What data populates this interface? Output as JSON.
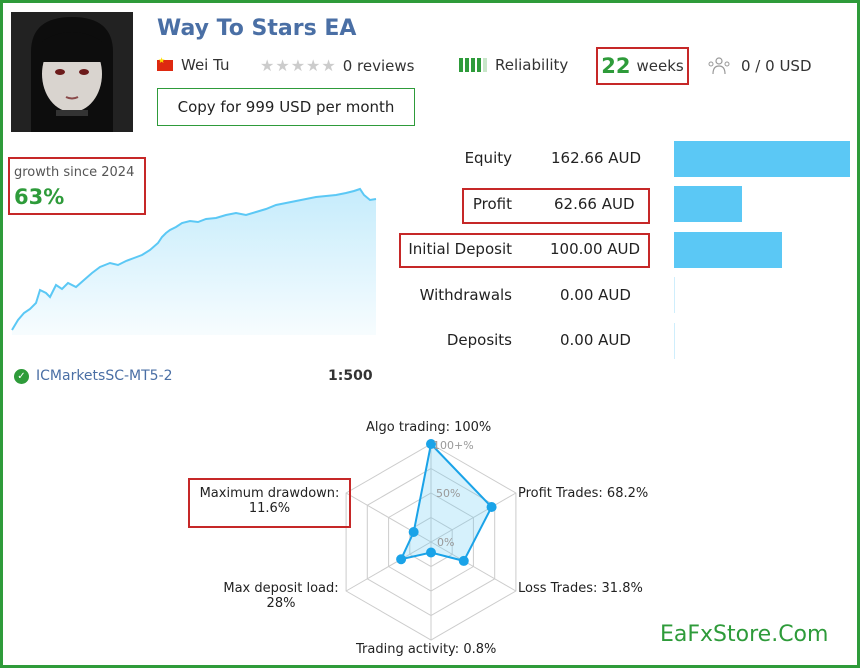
{
  "ea": {
    "title": "Way To Stars EA",
    "author": "Wei Tu",
    "flag_icon": "china-flag-icon"
  },
  "rating": {
    "stars_icon": "star-icon",
    "reviews": "0 reviews"
  },
  "reliability": {
    "label": "Reliability",
    "level": 4
  },
  "weeks": {
    "value": "22",
    "unit": "weeks"
  },
  "subscribers": {
    "icon": "people-icon",
    "text": "0 / 0 USD"
  },
  "copy_button": "Copy for 999 USD per month",
  "growth": {
    "label": "growth since 2024",
    "value": "63%"
  },
  "broker": {
    "name": "ICMarketsSC-MT5-2",
    "leverage": "1:500"
  },
  "stats": [
    {
      "label": "Equity",
      "value": "162.66 AUD",
      "amount": 162.66
    },
    {
      "label": "Profit",
      "value": "62.66 AUD",
      "amount": 62.66
    },
    {
      "label": "Initial Deposit",
      "value": "100.00 AUD",
      "amount": 100.0
    },
    {
      "label": "Withdrawals",
      "value": "0.00 AUD",
      "amount": 0
    },
    {
      "label": "Deposits",
      "value": "0.00 AUD",
      "amount": 0
    }
  ],
  "radar": {
    "ticks": [
      "100+%",
      "50%",
      "0%"
    ],
    "axes": [
      {
        "label": "Algo trading: 100%",
        "value": 100
      },
      {
        "label": "Profit Trades: 68.2%",
        "value": 68.2
      },
      {
        "label": "Loss Trades: 31.8%",
        "value": 31.8
      },
      {
        "label": "Trading activity: 0.8%",
        "value": 0.8
      },
      {
        "label_line1": "Max deposit load:",
        "label_line2": "28%",
        "value": 28
      },
      {
        "label_line1": "Maximum drawdown:",
        "label_line2": "11.6%",
        "value": 11.6
      }
    ]
  },
  "watermark": "EaFxStore.Com",
  "colors": {
    "accent": "#2e9b3a",
    "link": "#4a6fa5",
    "bar": "#5bc8f5",
    "highlight": "#c62828"
  }
}
